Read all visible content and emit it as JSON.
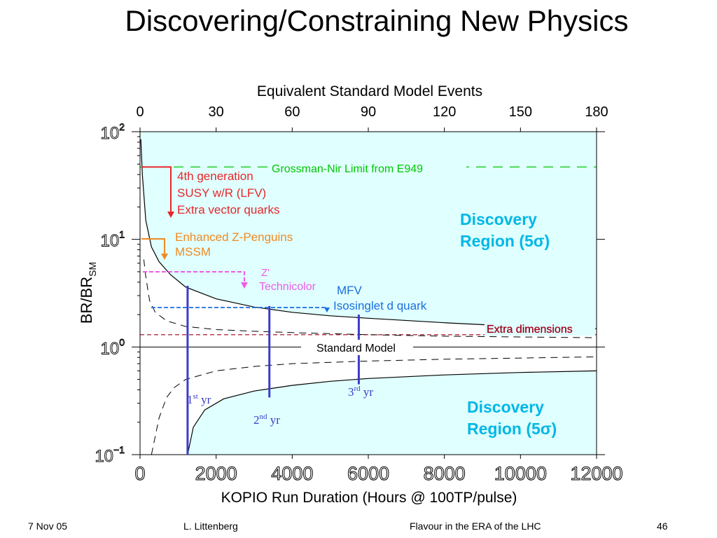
{
  "slide": {
    "title": "Discovering/Constraining New Physics",
    "footer": {
      "date": "7 Nov 05",
      "author": "L. Littenberg",
      "event": "Flavour in the ERA of the LHC",
      "page": "46"
    }
  },
  "colors": {
    "region_fill": "#e0ffff",
    "discovery_text": "#00b7e6",
    "red": "#e8262a",
    "orange": "#ef8a22",
    "magenta": "#ee5ce6",
    "blue": "#1a6fe0",
    "green": "#00c800",
    "darkred": "#a0001a",
    "marker": "#3b3bc8"
  },
  "chart_data": {
    "type": "line",
    "xlabel": "KOPIO Run Duration (Hours @ 100TP/pulse)",
    "ylabel": "BR/BR",
    "ylabel_sub": "SM",
    "x_ticks": [
      "0",
      "2000",
      "4000",
      "6000",
      "8000",
      "10000",
      "12000"
    ],
    "xlim": [
      0,
      12000
    ],
    "x2label": "Equivalent Standard Model Events",
    "x2_ticks": [
      "0",
      "30",
      "60",
      "90",
      "120",
      "150",
      "180"
    ],
    "y_scale": "log",
    "ylim": [
      0.1,
      100
    ],
    "y_ticks": [
      {
        "value": 100,
        "base": "10",
        "exp": "2"
      },
      {
        "value": 10,
        "base": "10",
        "exp": "1"
      },
      {
        "value": 1,
        "base": "10",
        "exp": "0"
      },
      {
        "value": 0.1,
        "base": "10",
        "exp": "−1"
      }
    ],
    "discovery_label_line1": "Discovery",
    "discovery_label_line2": "Region (5σ)",
    "standard_model_label": "Standard Model",
    "upper_5sigma_curve": {
      "x": [
        20,
        60,
        150,
        300,
        500,
        800,
        1200,
        2000,
        3000,
        4000,
        5000,
        6000,
        8000,
        10000,
        12000
      ],
      "y": [
        85,
        40,
        15,
        8.5,
        6.2,
        4.7,
        3.6,
        2.8,
        2.35,
        2.1,
        1.95,
        1.85,
        1.68,
        1.55,
        1.48
      ]
    },
    "lower_5sigma_curve": {
      "x": [
        1250,
        1400,
        1700,
        2200,
        3000,
        4000,
        5000,
        6000,
        8000,
        10000,
        12000
      ],
      "y": [
        0.1,
        0.18,
        0.26,
        0.33,
        0.39,
        0.44,
        0.48,
        0.51,
        0.55,
        0.58,
        0.6
      ]
    },
    "upper_dashed_curve": {
      "x": [
        100,
        150,
        250,
        400,
        700,
        1200,
        2000,
        3000,
        4000,
        6000,
        8000,
        10000,
        12000
      ],
      "y": [
        6.5,
        4.5,
        2.7,
        2.1,
        1.75,
        1.55,
        1.45,
        1.4,
        1.36,
        1.3,
        1.26,
        1.24,
        1.22
      ]
    },
    "lower_dashed_curve": {
      "x": [
        300,
        500,
        700,
        900,
        1200,
        2000,
        3000,
        4000,
        6000,
        8000,
        10000,
        12000
      ],
      "y": [
        0.1,
        0.22,
        0.34,
        0.42,
        0.5,
        0.6,
        0.66,
        0.7,
        0.74,
        0.77,
        0.79,
        0.81
      ]
    },
    "limits": [
      {
        "name": "Grossman-Nir Limit from E949",
        "y": 47,
        "style": "dashed",
        "color": "#00c800"
      },
      {
        "name": "Extra dimensions",
        "y": 1.3,
        "style": "dashed",
        "color": "#a0001a"
      }
    ],
    "models": [
      {
        "lines": [
          "4th generation",
          "SUSY w/R (LFV)",
          "Extra vector quarks"
        ],
        "y_from": 47,
        "y_to": 17,
        "color": "#e8262a"
      },
      {
        "lines": [
          "Enhanced Z-Penguins",
          "MSSM"
        ],
        "y_from": 10,
        "y_to": 7,
        "color": "#ef8a22"
      },
      {
        "lines": [
          "Z'",
          "Technicolor"
        ],
        "y_from": 5.5,
        "y_to": 4,
        "color": "#ee5ce6"
      },
      {
        "lines": [
          "MFV",
          "Isosinglet d quark"
        ],
        "y": 2.4,
        "color": "#1a6fe0"
      }
    ],
    "year_markers": [
      {
        "x": 1250,
        "y_low": 0.1,
        "y_high": 3.7,
        "num": "1",
        "sup": "st",
        "unit": "yr"
      },
      {
        "x": 3400,
        "y_low": 0.34,
        "y_high": 2.4,
        "num": "2",
        "sup": "nd",
        "unit": "yr"
      },
      {
        "x": 5750,
        "y_low": 0.45,
        "y_high": 2.0,
        "num": "3",
        "sup": "rd",
        "unit": "yr"
      }
    ]
  }
}
